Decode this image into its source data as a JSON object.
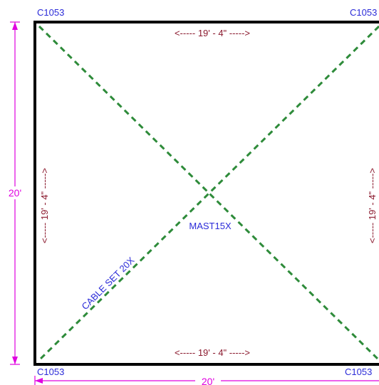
{
  "corners": {
    "top_left": "C1053",
    "top_right": "C1053",
    "bottom_left": "C1053",
    "bottom_right": "C1053"
  },
  "dimensions": {
    "top": "<----- 19' - 4\" ----->",
    "bottom": "<----- 19' - 4\" ----->",
    "left": "<----- 19' - 4\" ----->",
    "right": "<----- 19' - 4\" ----->",
    "overall_vertical": "20'",
    "overall_horizontal": "20'"
  },
  "labels": {
    "mast": "MAST15X",
    "cable": "CABLE SET 20X"
  },
  "colors": {
    "frame": "#000000",
    "cable": "#2e8b3a",
    "corner_text": "#2a2ad8",
    "dimension_text": "#8b1a2e",
    "overall_dim": "#e000e0"
  }
}
